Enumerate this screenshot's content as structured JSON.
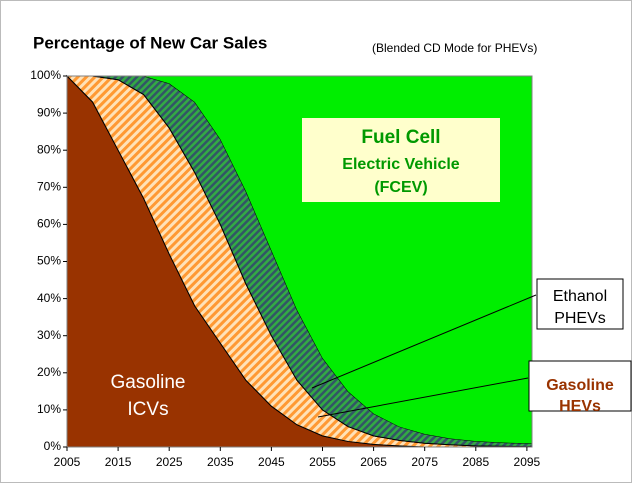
{
  "chart_data": {
    "type": "stacked_area",
    "title": "Percentage of New Car Sales",
    "subtitle": "(Blended CD Mode for PHEVs)",
    "x": [
      2005,
      2010,
      2015,
      2020,
      2025,
      2030,
      2035,
      2040,
      2045,
      2050,
      2055,
      2060,
      2065,
      2070,
      2075,
      2080,
      2085,
      2090,
      2095,
      2096
    ],
    "series": [
      {
        "name": [
          "Gasoline",
          "ICVs"
        ],
        "color": "#993300",
        "values": [
          100,
          93,
          80,
          67,
          52,
          38,
          28,
          18,
          11,
          6,
          3,
          1.5,
          0.7,
          0.3,
          0,
          0,
          0,
          0,
          0,
          0
        ]
      },
      {
        "name": [
          "Gasoline",
          "HEVs"
        ],
        "color": "#ff9933",
        "values": [
          0,
          7,
          19,
          28,
          34,
          36,
          32,
          26,
          19,
          12,
          7,
          4,
          2.3,
          1.5,
          1,
          0.6,
          0.3,
          0.2,
          0.1,
          0.1
        ]
      },
      {
        "name": [
          "Ethanol",
          "PHEVs"
        ],
        "color": "#2f7f3f",
        "values": [
          0,
          0,
          1,
          5,
          12,
          19,
          23,
          25,
          23,
          19,
          14,
          9.5,
          6,
          3.7,
          2.5,
          1.7,
          1.3,
          1,
          0.9,
          0.9
        ]
      },
      {
        "name": [
          "Fuel Cell",
          "Electric Vehicle",
          "(FCEV)"
        ],
        "color": "#00ee00",
        "values": [
          0,
          0,
          0,
          0,
          2,
          7,
          17,
          31,
          47,
          63,
          76,
          85,
          91,
          94.5,
          96.5,
          97.7,
          98.4,
          98.8,
          99,
          99
        ]
      }
    ],
    "xlim": [
      2005,
      2096
    ],
    "xticks": [
      2005,
      2015,
      2025,
      2035,
      2045,
      2055,
      2065,
      2075,
      2085,
      2095
    ],
    "ylim": [
      0,
      100
    ],
    "yticks": [
      {
        "value": 0,
        "label": "0%"
      },
      {
        "value": 10,
        "label": "10%"
      },
      {
        "value": 20,
        "label": "20%"
      },
      {
        "value": 30,
        "label": "30%"
      },
      {
        "value": 40,
        "label": "40%"
      },
      {
        "value": 50,
        "label": "50%"
      },
      {
        "value": 60,
        "label": "60%"
      },
      {
        "value": 70,
        "label": "70%"
      },
      {
        "value": 80,
        "label": "80%"
      },
      {
        "value": 90,
        "label": "90%"
      },
      {
        "value": 100,
        "label": "100%"
      }
    ]
  }
}
